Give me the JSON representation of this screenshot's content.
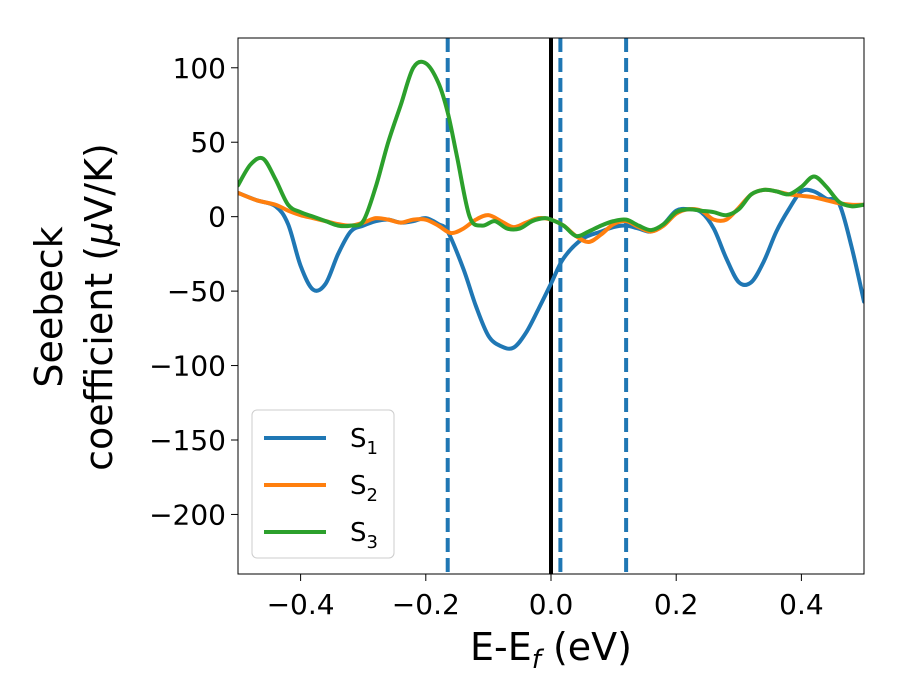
{
  "chart_data": {
    "type": "line",
    "title": "",
    "xlabel": "E-E",
    "xlabel_sub": "f",
    "xlabel_unit": " (eV)",
    "ylabel_line1": "Seebeck",
    "ylabel_line2_pre": "coefficient  (",
    "ylabel_line2_mu": "μ",
    "ylabel_line2_post": "V/K)",
    "xlim": [
      -0.5,
      0.5
    ],
    "ylim": [
      -240,
      120
    ],
    "xticks": [
      -0.4,
      -0.2,
      0.0,
      0.2,
      0.4
    ],
    "xtick_labels": [
      "−0.4",
      "−0.2",
      "0.0",
      "0.2",
      "0.4"
    ],
    "yticks": [
      100,
      50,
      0,
      -50,
      -100,
      -150,
      -200
    ],
    "ytick_labels": [
      "100",
      "50",
      "0",
      "−50",
      "−100",
      "−150",
      "−200"
    ],
    "grid": false,
    "legend_position": "lower-left",
    "vlines": [
      {
        "x": 0.0,
        "color": "#000000",
        "style": "solid"
      },
      {
        "x": -0.165,
        "color": "#1f77b4",
        "style": "dashed"
      },
      {
        "x": 0.015,
        "color": "#1f77b4",
        "style": "dashed"
      },
      {
        "x": 0.12,
        "color": "#1f77b4",
        "style": "dashed"
      }
    ],
    "series": [
      {
        "name": "S",
        "sub": "1",
        "color": "#1f77b4",
        "x": [
          -0.5,
          -0.47,
          -0.44,
          -0.42,
          -0.4,
          -0.38,
          -0.36,
          -0.34,
          -0.32,
          -0.3,
          -0.28,
          -0.26,
          -0.24,
          -0.22,
          -0.2,
          -0.18,
          -0.165,
          -0.14,
          -0.12,
          -0.1,
          -0.08,
          -0.06,
          -0.04,
          -0.02,
          0.0,
          0.02,
          0.05,
          0.08,
          0.1,
          0.12,
          0.14,
          0.16,
          0.18,
          0.2,
          0.22,
          0.24,
          0.26,
          0.28,
          0.3,
          0.32,
          0.34,
          0.36,
          0.38,
          0.4,
          0.42,
          0.44,
          0.46,
          0.48,
          0.5
        ],
        "y": [
          16,
          11,
          7,
          -5,
          -33,
          -49,
          -45,
          -25,
          -10,
          -6,
          -3,
          -2,
          -4,
          -3,
          -1,
          -5,
          -10,
          -35,
          -60,
          -80,
          -87,
          -88,
          -78,
          -62,
          -45,
          -28,
          -15,
          -10,
          -7,
          -6,
          -8,
          -10,
          -5,
          4,
          5,
          3,
          -8,
          -28,
          -44,
          -44,
          -30,
          -10,
          5,
          17,
          17,
          12,
          9,
          -20,
          -57
        ]
      },
      {
        "name": "S",
        "sub": "2",
        "color": "#ff7f0e",
        "x": [
          -0.5,
          -0.47,
          -0.44,
          -0.42,
          -0.4,
          -0.38,
          -0.36,
          -0.34,
          -0.32,
          -0.3,
          -0.28,
          -0.26,
          -0.24,
          -0.22,
          -0.2,
          -0.18,
          -0.16,
          -0.14,
          -0.12,
          -0.1,
          -0.08,
          -0.06,
          -0.04,
          -0.02,
          0.0,
          0.02,
          0.04,
          0.06,
          0.08,
          0.1,
          0.12,
          0.14,
          0.16,
          0.18,
          0.2,
          0.22,
          0.24,
          0.26,
          0.28,
          0.3,
          0.32,
          0.34,
          0.36,
          0.38,
          0.4,
          0.42,
          0.44,
          0.46,
          0.48,
          0.5
        ],
        "y": [
          16,
          11,
          8,
          4,
          1,
          -1,
          -3,
          -5,
          -6,
          -4,
          -1,
          -2,
          -4,
          -2,
          -2,
          -6,
          -11,
          -8,
          -2,
          1,
          -3,
          -7,
          -4,
          -1,
          -2,
          -6,
          -13,
          -17,
          -12,
          -5,
          -3,
          -7,
          -10,
          -6,
          2,
          5,
          4,
          -2,
          -2,
          6,
          15,
          18,
          17,
          15,
          14,
          13,
          11,
          9,
          8,
          8
        ]
      },
      {
        "name": "S",
        "sub": "3",
        "color": "#2ca02c",
        "x": [
          -0.5,
          -0.48,
          -0.46,
          -0.44,
          -0.42,
          -0.4,
          -0.38,
          -0.36,
          -0.34,
          -0.32,
          -0.3,
          -0.28,
          -0.26,
          -0.24,
          -0.22,
          -0.2,
          -0.18,
          -0.165,
          -0.15,
          -0.13,
          -0.11,
          -0.09,
          -0.07,
          -0.05,
          -0.03,
          -0.01,
          0.0,
          0.02,
          0.04,
          0.06,
          0.08,
          0.1,
          0.12,
          0.14,
          0.16,
          0.18,
          0.2,
          0.22,
          0.24,
          0.26,
          0.28,
          0.3,
          0.32,
          0.34,
          0.36,
          0.38,
          0.4,
          0.42,
          0.44,
          0.46,
          0.48,
          0.5
        ],
        "y": [
          21,
          35,
          39,
          25,
          8,
          3,
          0,
          -3,
          -6,
          -6,
          -3,
          20,
          50,
          75,
          100,
          103,
          90,
          70,
          40,
          0,
          -6,
          -3,
          -8,
          -8,
          -3,
          -1,
          -2,
          -6,
          -13,
          -10,
          -6,
          -3,
          -2,
          -6,
          -9,
          -5,
          3,
          5,
          4,
          3,
          1,
          5,
          15,
          18,
          17,
          15,
          20,
          27,
          20,
          10,
          7,
          8
        ]
      }
    ]
  }
}
